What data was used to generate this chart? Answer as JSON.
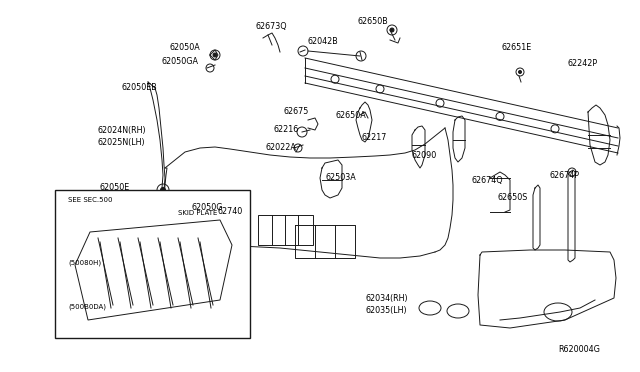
{
  "bg_color": "#ffffff",
  "line_color": "#1a1a1a",
  "text_color": "#000000",
  "fig_width": 6.4,
  "fig_height": 3.72,
  "dpi": 100,
  "labels": [
    [
      "62673Q",
      255,
      28,
      "left"
    ],
    [
      "62042B",
      310,
      42,
      "left"
    ],
    [
      "62650B",
      358,
      28,
      "left"
    ],
    [
      "62651E",
      504,
      50,
      "left"
    ],
    [
      "62242P",
      565,
      68,
      "left"
    ],
    [
      "62050A",
      170,
      48,
      "left"
    ],
    [
      "62050GA",
      164,
      63,
      "left"
    ],
    [
      "62050EB",
      127,
      90,
      "left"
    ],
    [
      "62024N(RH)",
      100,
      130,
      "left"
    ],
    [
      "62025N(LH)",
      100,
      141,
      "left"
    ],
    [
      "62050E",
      100,
      185,
      "left"
    ],
    [
      "62050G",
      192,
      207,
      "left"
    ],
    [
      "62675",
      288,
      113,
      "left"
    ],
    [
      "62216",
      278,
      130,
      "left"
    ],
    [
      "62022A",
      270,
      145,
      "left"
    ],
    [
      "62650A",
      337,
      118,
      "left"
    ],
    [
      "62217",
      365,
      140,
      "left"
    ],
    [
      "62503A",
      330,
      178,
      "left"
    ],
    [
      "62090",
      415,
      155,
      "left"
    ],
    [
      "62674Q",
      474,
      183,
      "left"
    ],
    [
      "62674P",
      555,
      178,
      "left"
    ],
    [
      "62650S",
      500,
      198,
      "left"
    ],
    [
      "62740",
      218,
      213,
      "left"
    ],
    [
      "62034(RH)",
      367,
      298,
      "left"
    ],
    [
      "62035(LH)",
      367,
      310,
      "left"
    ],
    [
      "(50080H)",
      88,
      258,
      "left"
    ],
    [
      "(500B0DA)",
      88,
      310,
      "left"
    ],
    [
      "SEE SEC.500",
      72,
      198,
      "left"
    ],
    [
      "SKID PLATE",
      178,
      210,
      "left"
    ],
    [
      "R620004G",
      558,
      348,
      "left"
    ]
  ]
}
